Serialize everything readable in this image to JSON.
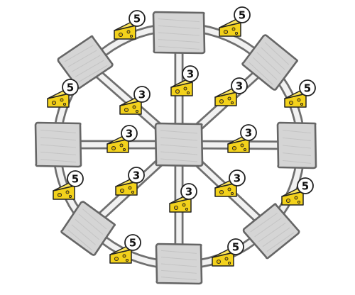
{
  "diagram": {
    "center_room": "room-center",
    "outer_rooms": [
      "room-top",
      "room-top-right",
      "room-right",
      "room-bottom-right",
      "room-bottom",
      "room-bottom-left",
      "room-left",
      "room-top-left"
    ],
    "connections": [
      {
        "id": "spoke-top",
        "from": "room-center",
        "to": "room-top",
        "kind": "spoke",
        "reward": "3"
      },
      {
        "id": "spoke-top-right",
        "from": "room-center",
        "to": "room-top-right",
        "kind": "spoke",
        "reward": "3"
      },
      {
        "id": "spoke-right",
        "from": "room-center",
        "to": "room-right",
        "kind": "spoke",
        "reward": "3"
      },
      {
        "id": "spoke-bottom-right",
        "from": "room-center",
        "to": "room-bottom-right",
        "kind": "spoke",
        "reward": "3"
      },
      {
        "id": "spoke-bottom",
        "from": "room-center",
        "to": "room-bottom",
        "kind": "spoke",
        "reward": "3"
      },
      {
        "id": "spoke-bottom-left",
        "from": "room-center",
        "to": "room-bottom-left",
        "kind": "spoke",
        "reward": "3"
      },
      {
        "id": "spoke-left",
        "from": "room-center",
        "to": "room-left",
        "kind": "spoke",
        "reward": "3"
      },
      {
        "id": "spoke-top-left",
        "from": "room-center",
        "to": "room-top-left",
        "kind": "spoke",
        "reward": "3"
      },
      {
        "id": "rim-top-topright",
        "from": "room-top",
        "to": "room-top-right",
        "kind": "rim",
        "reward": "5"
      },
      {
        "id": "rim-topright-right",
        "from": "room-top-right",
        "to": "room-right",
        "kind": "rim",
        "reward": "5"
      },
      {
        "id": "rim-right-bottomright",
        "from": "room-right",
        "to": "room-bottom-right",
        "kind": "rim",
        "reward": "5"
      },
      {
        "id": "rim-bottomright-bottom",
        "from": "room-bottom-right",
        "to": "room-bottom",
        "kind": "rim",
        "reward": "5"
      },
      {
        "id": "rim-bottom-bottomleft",
        "from": "room-bottom",
        "to": "room-bottom-left",
        "kind": "rim",
        "reward": "5"
      },
      {
        "id": "rim-bottomleft-left",
        "from": "room-bottom-left",
        "to": "room-left",
        "kind": "rim",
        "reward": "5"
      },
      {
        "id": "rim-left-topleft",
        "from": "room-left",
        "to": "room-top-left",
        "kind": "rim",
        "reward": "5"
      },
      {
        "id": "rim-topleft-top",
        "from": "room-top-left",
        "to": "room-top",
        "kind": "rim",
        "reward": "5"
      }
    ],
    "reward_icon": "cheese-icon",
    "colors": {
      "room_fill": "#d5d5d5",
      "room_stroke": "#666666",
      "cheese": "#f3d21c",
      "road": "#6f6f6f"
    }
  }
}
